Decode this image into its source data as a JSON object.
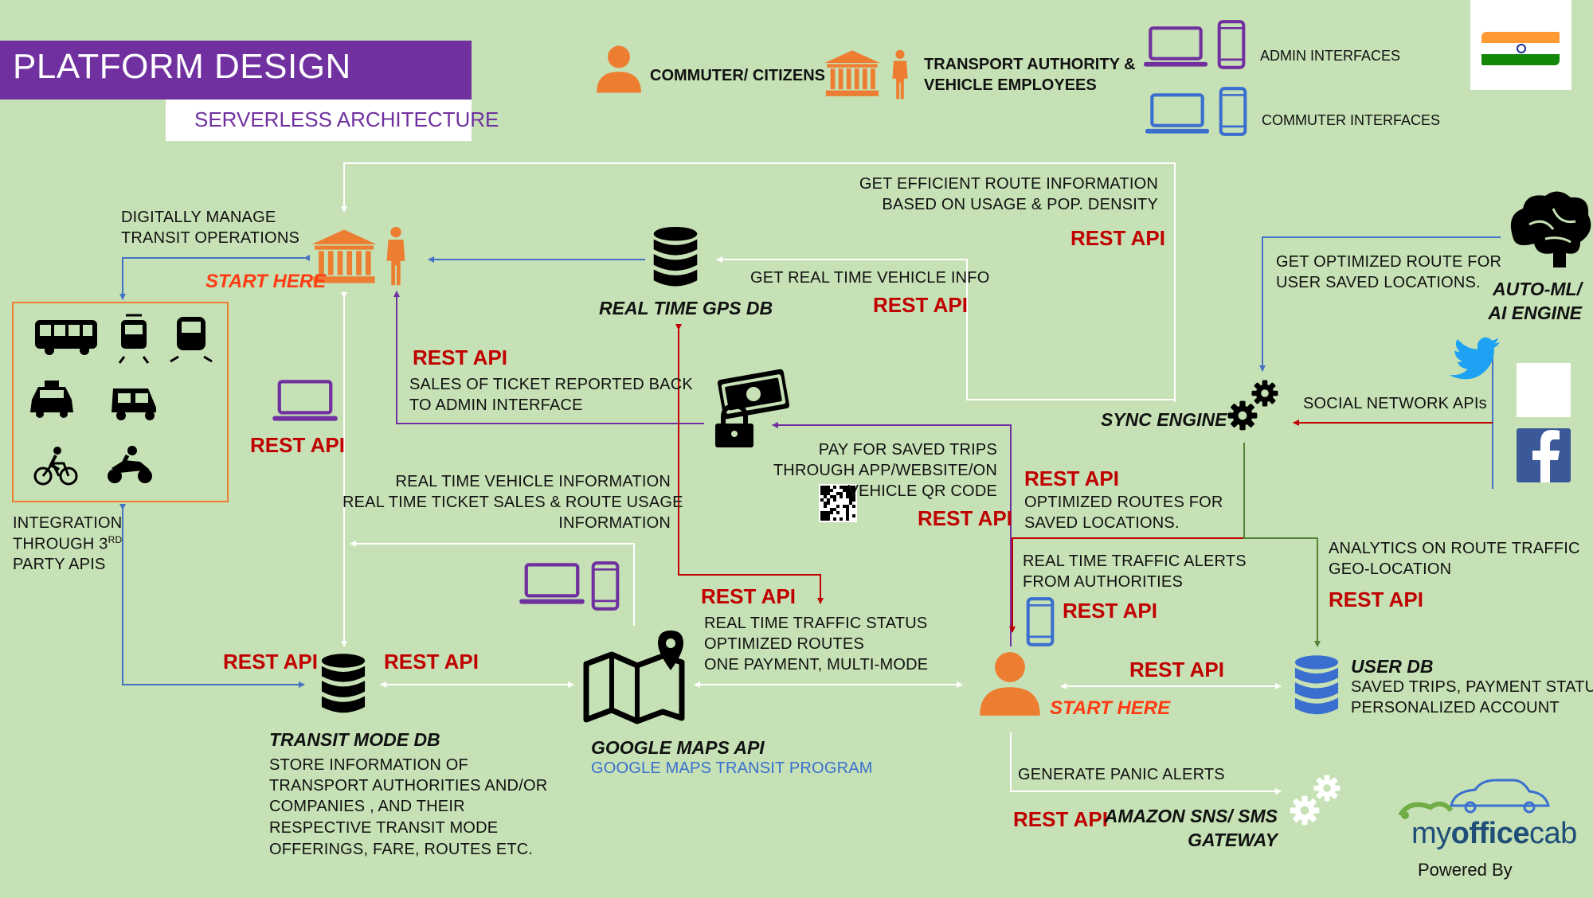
{
  "header": {
    "title": "PLATFORM DESIGN",
    "subtitle": "SERVERLESS ARCHITECTURE"
  },
  "legend": {
    "commuter": "COMMUTER/ CITIZENS",
    "authority": [
      "TRANSPORT AUTHORITY &",
      "VEHICLE EMPLOYEES"
    ],
    "admin": "ADMIN INTERFACES",
    "commuter_interfaces": "COMMUTER INTERFACES"
  },
  "labels": {
    "rest_api": "REST API",
    "start_here": "START HERE"
  },
  "nodes": {
    "gps_db": "REAL TIME GPS DB",
    "sync_engine": "SYNC ENGINE",
    "ai_engine": [
      "AUTO-ML/",
      "AI ENGINE"
    ],
    "transit_db": "TRANSIT MODE DB",
    "google_maps": "GOOGLE MAPS API",
    "google_maps_program": "GOOGLE MAPS TRANSIT PROGRAM",
    "user_db": "USER DB",
    "amazon": [
      "AMAZON SNS/ SMS",
      "GATEWAY"
    ]
  },
  "descriptions": {
    "manage": [
      "DIGITALLY MANAGE",
      "TRANSIT OPERATIONS"
    ],
    "efficient_route": [
      "GET EFFICIENT ROUTE INFORMATION",
      "BASED ON USAGE & POP. DENSITY"
    ],
    "vehicle_info": "GET REAL TIME VEHICLE INFO",
    "optimized_saved": [
      "GET OPTIMIZED ROUTE FOR",
      "USER SAVED LOCATIONS."
    ],
    "ticket_sales": [
      "SALES OF TICKET REPORTED BACK",
      "TO ADMIN INTERFACE"
    ],
    "social": "SOCIAL NETWORK APIs",
    "pay": [
      "PAY FOR SAVED TRIPS",
      "THROUGH APP/WEBSITE/ON",
      "VEHICLE QR CODE"
    ],
    "realtime_info": [
      "REAL TIME VEHICLE INFORMATION",
      "REAL TIME TICKET SALES & ROUTE USAGE",
      "INFORMATION"
    ],
    "optimized_routes": [
      "OPTIMIZED ROUTES FOR",
      "SAVED LOCATIONS."
    ],
    "traffic_alerts": [
      "REAL TIME TRAFFIC ALERTS",
      "FROM AUTHORITIES"
    ],
    "analytics": [
      "ANALYTICS ON ROUTE TRAFFIC",
      "GEO-LOCATION"
    ],
    "integration": [
      "INTEGRATION",
      "THROUGH 3",
      "RD",
      "PARTY APIS"
    ],
    "traffic_status": [
      "REAL TIME TRAFFIC STATUS",
      "OPTIMIZED ROUTES",
      "ONE PAYMENT, MULTI-MODE"
    ],
    "transit_store": [
      "STORE INFORMATION OF",
      "TRANSPORT AUTHORITIES AND/OR",
      "COMPANIES , AND THEIR",
      "RESPECTIVE TRANSIT MODE",
      "OFFERINGS, FARE, ROUTES ETC."
    ],
    "user_db_desc": [
      "SAVED TRIPS, PAYMENT STATUS",
      "PERSONALIZED ACCOUNT"
    ],
    "panic": "GENERATE PANIC ALERTS"
  },
  "branding": {
    "logo_regular_a": "my",
    "logo_bold": "office",
    "logo_regular_b": "cab",
    "powered_by": "Powered By"
  },
  "colors": {
    "background": "#c6e1b5",
    "purple": "#7030a0",
    "rest_red": "#c00000",
    "start_orange": "#ff3c14",
    "person_orange": "#ed7d31",
    "icon_blue": "#3a6fd0",
    "line_blue": "#4472c4",
    "line_red": "#c00000",
    "line_purple": "#7030a0",
    "line_green": "#548235",
    "line_white": "#ffffff"
  },
  "icons": [
    "person-icon",
    "government-building-icon",
    "laptop-icon",
    "mobile-phone-icon",
    "database-icon",
    "map-pin-icon",
    "gears-icon",
    "brain-icon",
    "twitter-icon",
    "facebook-icon",
    "bus-icon",
    "tram-icon",
    "train-icon",
    "taxi-icon",
    "auto-rickshaw-icon",
    "bicycle-icon",
    "motorbike-icon",
    "cash-lock-icon",
    "qr-code-icon",
    "india-flag-icon"
  ]
}
